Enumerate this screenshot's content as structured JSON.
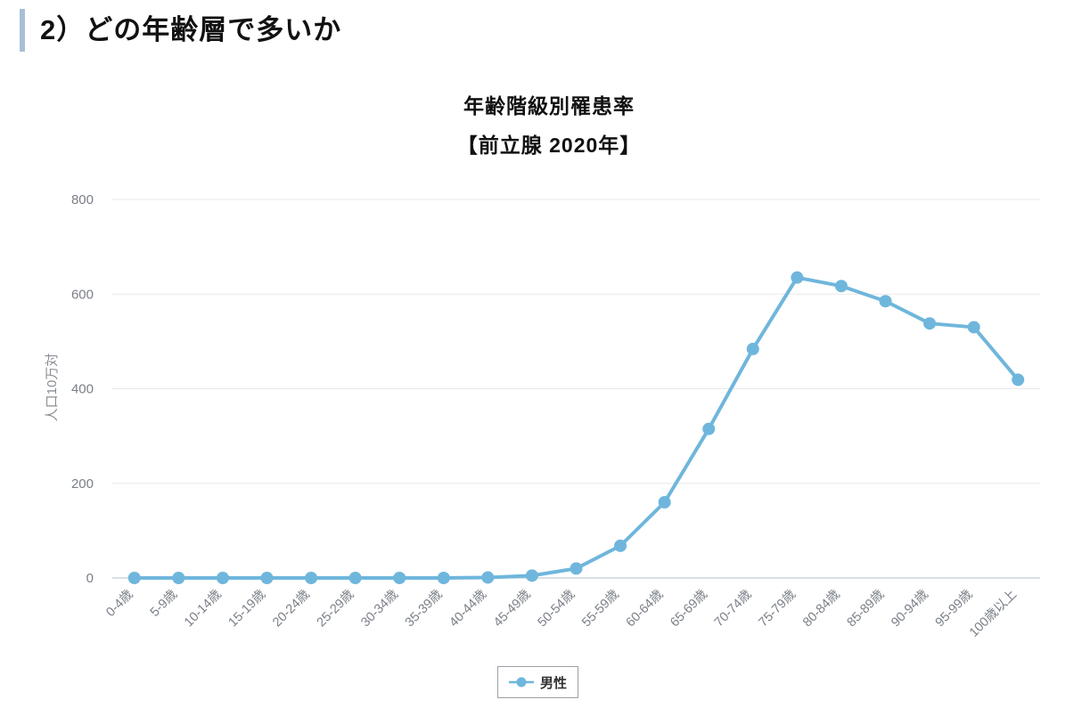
{
  "heading": {
    "text": "2）どの年齢層で多いか"
  },
  "chart": {
    "title": "年齢階級別罹患率",
    "subtitle": "【前立腺 2020年】",
    "y_axis_name": "人口10万対",
    "series_name": "男性"
  },
  "chart_data": {
    "type": "line",
    "title": "年齢階級別罹患率",
    "subtitle": "【前立腺 2020年】",
    "xlabel": "",
    "ylabel": "人口10万対",
    "categories": [
      "0-4歳",
      "5-9歳",
      "10-14歳",
      "15-19歳",
      "20-24歳",
      "25-29歳",
      "30-34歳",
      "35-39歳",
      "40-44歳",
      "45-49歳",
      "50-54歳",
      "55-59歳",
      "60-64歳",
      "65-69歳",
      "70-74歳",
      "75-79歳",
      "80-84歳",
      "85-89歳",
      "90-94歳",
      "95-99歳",
      "100歳以上"
    ],
    "series": [
      {
        "name": "男性",
        "values": [
          0,
          0,
          0,
          0,
          0,
          0,
          0,
          0,
          1,
          5,
          20,
          68,
          160,
          315,
          484,
          635,
          617,
          585,
          538,
          530,
          419
        ]
      }
    ],
    "ylim": [
      0,
      800
    ],
    "yticks": [
      0,
      200,
      400,
      600,
      800
    ],
    "grid": "horizontal-only",
    "legend_position": "bottom-center",
    "x_tick_rotation_deg": -45
  },
  "colors": {
    "line": "#6FB6DC",
    "grid": "#E9E9E9",
    "axis_line": "#C9D6E4",
    "tick_text": "#7A7F87",
    "axis_name_text": "#8A8F96",
    "heading_accent": "#A9BFD7",
    "legend_border": "#9AA0A6",
    "legend_text": "#333333",
    "title_text": "#111111"
  }
}
